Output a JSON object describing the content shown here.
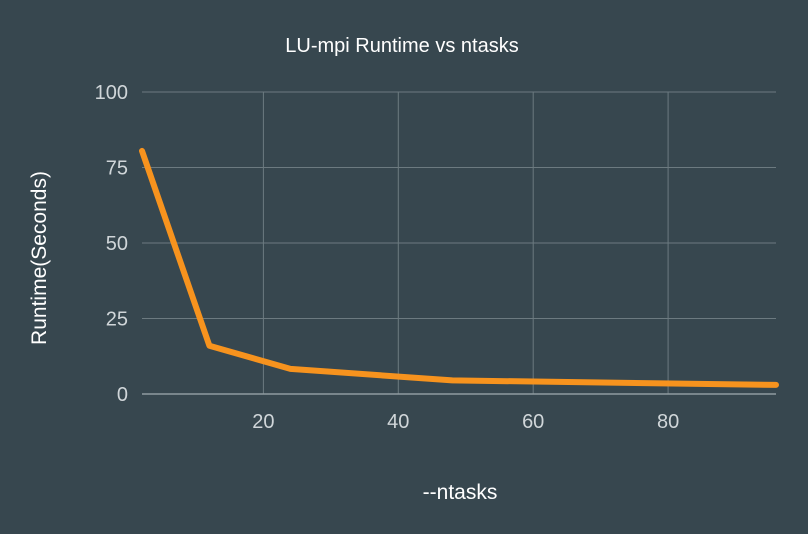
{
  "chart_data": {
    "type": "line",
    "title": "LU-mpi Runtime vs ntasks",
    "xlabel": "--ntasks",
    "ylabel": "Runtime(Seconds)",
    "xlim": [
      2,
      96
    ],
    "ylim": [
      0,
      100
    ],
    "x_ticks": [
      20,
      40,
      60,
      80
    ],
    "y_ticks": [
      0,
      25,
      50,
      75,
      100
    ],
    "grid": true,
    "legend": "none",
    "series": [
      {
        "color": "#f7931e",
        "x": [
          2,
          12,
          24,
          48,
          96
        ],
        "y": [
          80.5,
          16,
          8.3,
          4.5,
          3
        ]
      }
    ]
  },
  "colors": {
    "background": "#37474f",
    "grid": "#6c7a80",
    "text": "#ffffff"
  }
}
